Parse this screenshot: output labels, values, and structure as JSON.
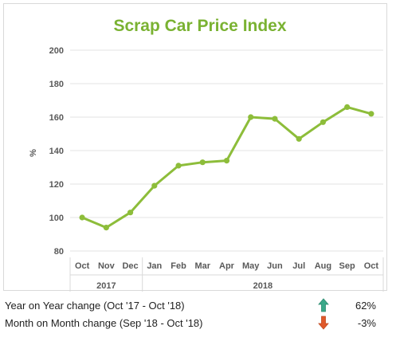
{
  "chart_data": {
    "type": "line",
    "title": "Scrap Car Price Index",
    "ylabel": "%",
    "ylim": [
      80,
      200
    ],
    "yticks": [
      80,
      100,
      120,
      140,
      160,
      180,
      200
    ],
    "grid": true,
    "categories": [
      "Oct",
      "Nov",
      "Dec",
      "Jan",
      "Feb",
      "Mar",
      "Apr",
      "May",
      "Jun",
      "Jul",
      "Aug",
      "Sep",
      "Oct"
    ],
    "year_groups": [
      {
        "label": "2017",
        "count": 3
      },
      {
        "label": "2018",
        "count": 10
      }
    ],
    "series": [
      {
        "values": [
          100,
          94,
          103,
          119,
          131,
          133,
          134,
          160,
          159,
          147,
          157,
          166,
          162
        ]
      }
    ],
    "colors": {
      "line": "#8dbd3a",
      "title": "#7ab232",
      "grid": "#e3e3e3",
      "axis_text": "#595959"
    }
  },
  "summary": [
    {
      "label": "Year on Year change (Oct '17 - Oct '18)",
      "icon": "arrow-up-icon",
      "value": "62%",
      "color": "#3aa889"
    },
    {
      "label": "Month on Month change (Sep '18 - Oct '18)",
      "icon": "arrow-down-icon",
      "value": "-3%",
      "color": "#e0592a"
    }
  ]
}
